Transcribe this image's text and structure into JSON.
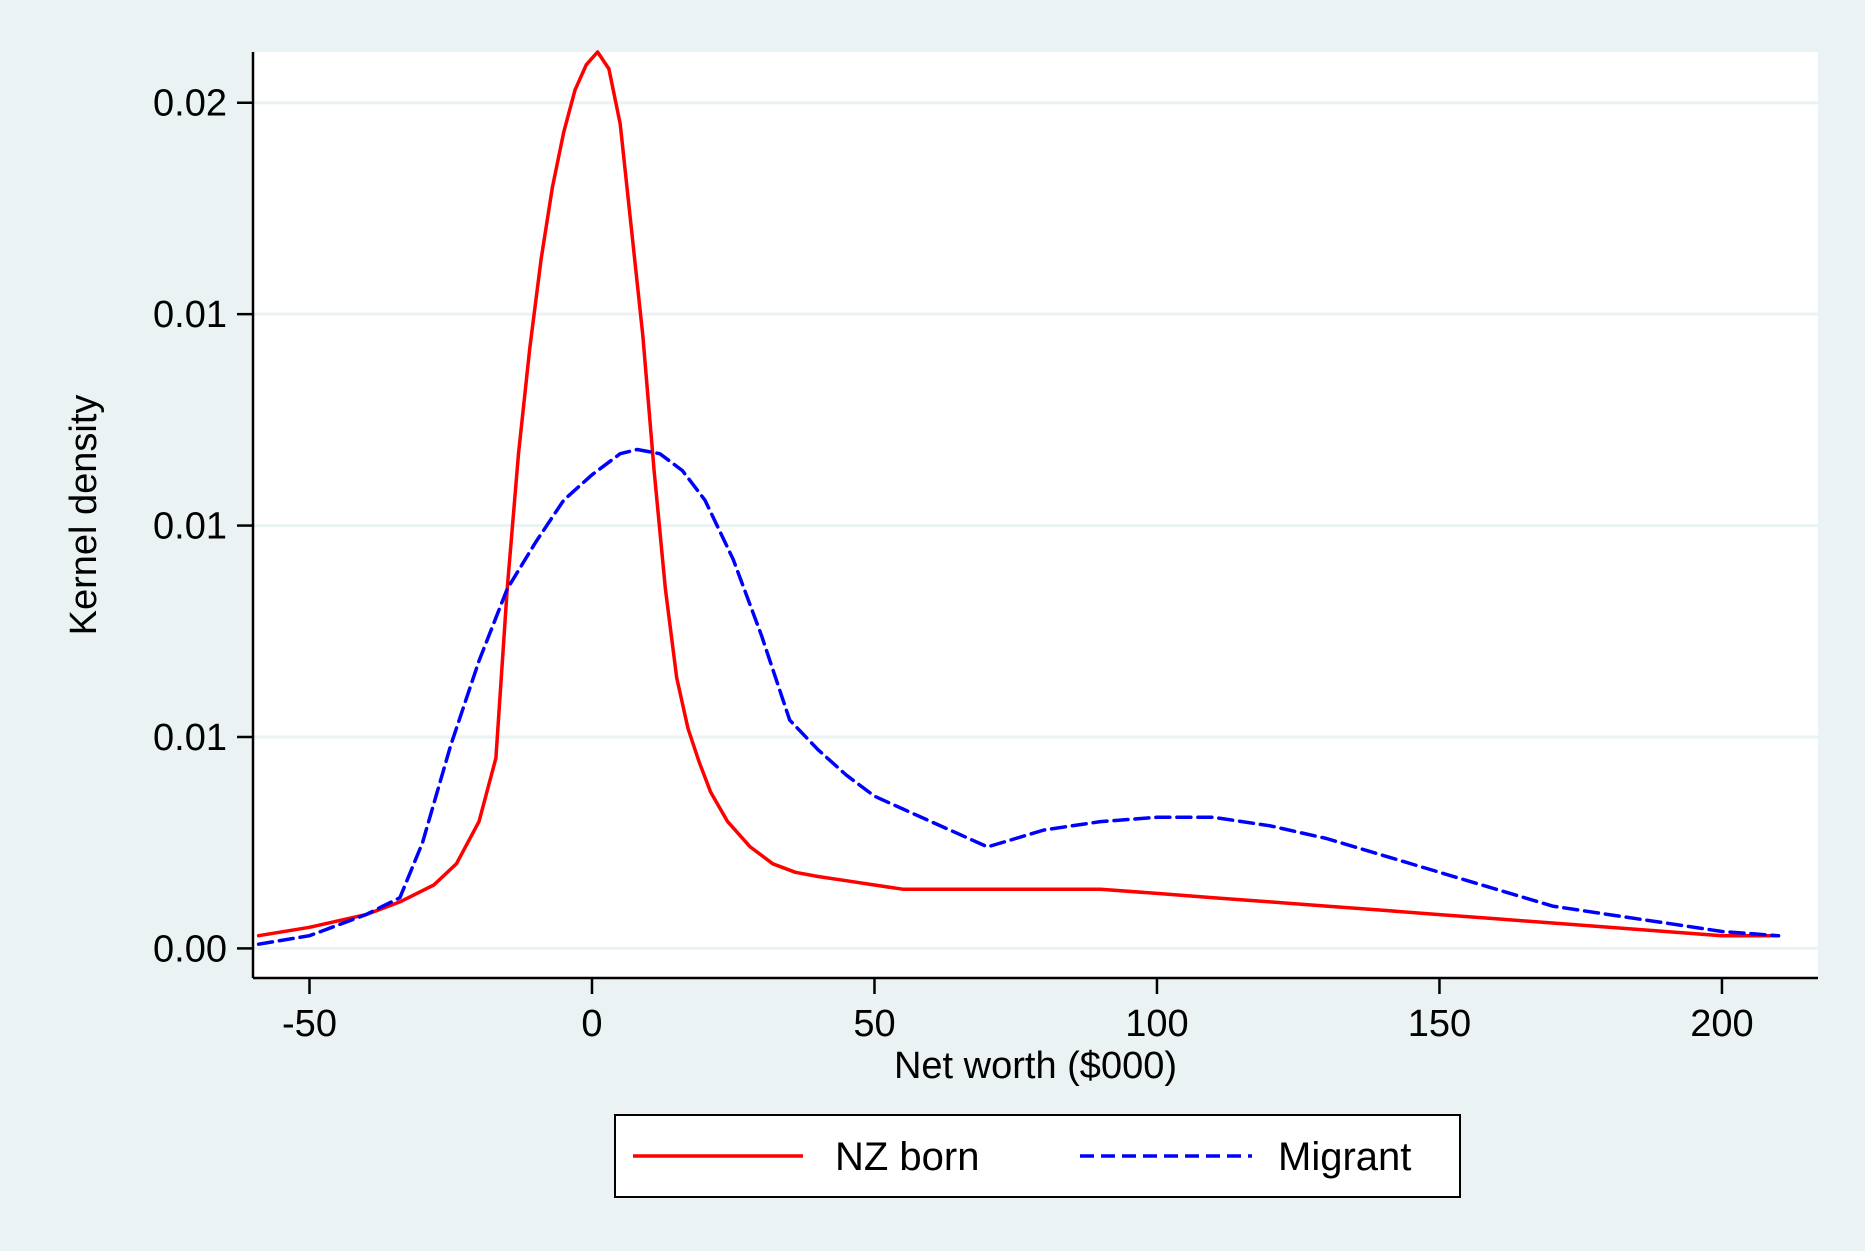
{
  "colors": {
    "outer_background": "#eaf2f3",
    "plot_background": "#ffffff",
    "gridline": "#eaf2f3",
    "axis": "#000000"
  },
  "chart_data": {
    "type": "line",
    "title": "",
    "xlabel": "Net worth ($000)",
    "ylabel": "Kernel density",
    "xlim": [
      -60,
      217
    ],
    "ylim": [
      -0.0007,
      0.0212
    ],
    "grid": true,
    "legend_position": "bottom",
    "x_ticks": [
      {
        "value": -50,
        "label": "-50"
      },
      {
        "value": 0,
        "label": "0"
      },
      {
        "value": 50,
        "label": "50"
      },
      {
        "value": 100,
        "label": "100"
      },
      {
        "value": 150,
        "label": "150"
      },
      {
        "value": 200,
        "label": "200"
      }
    ],
    "y_ticks": [
      {
        "value": 0.0,
        "label": "0.00"
      },
      {
        "value": 0.005,
        "label": "0.01"
      },
      {
        "value": 0.01,
        "label": "0.01"
      },
      {
        "value": 0.015,
        "label": "0.01"
      },
      {
        "value": 0.02,
        "label": "0.02"
      }
    ],
    "series": [
      {
        "name": "NZ born",
        "color": "#ff0000",
        "dash": "solid",
        "x": [
          -59,
          -50,
          -40,
          -34,
          -28,
          -24,
          -20,
          -17,
          -15,
          -13,
          -11,
          -9,
          -7,
          -5,
          -3,
          -1,
          1,
          3,
          5,
          7,
          9,
          11,
          13,
          15,
          17,
          19,
          21,
          24,
          28,
          32,
          36,
          40,
          45,
          50,
          55,
          60,
          65,
          70,
          75,
          80,
          90,
          100,
          110,
          120,
          130,
          140,
          150,
          160,
          170,
          180,
          190,
          200,
          210
        ],
        "y": [
          0.0003,
          0.0005,
          0.0008,
          0.0011,
          0.0015,
          0.002,
          0.003,
          0.0045,
          0.0085,
          0.0117,
          0.0142,
          0.0163,
          0.018,
          0.0193,
          0.0203,
          0.0209,
          0.0212,
          0.0208,
          0.0195,
          0.017,
          0.0145,
          0.0113,
          0.0085,
          0.0064,
          0.0052,
          0.0044,
          0.0037,
          0.003,
          0.0024,
          0.002,
          0.0018,
          0.0017,
          0.0016,
          0.0015,
          0.0014,
          0.0014,
          0.0014,
          0.0014,
          0.0014,
          0.0014,
          0.0014,
          0.0013,
          0.0012,
          0.0011,
          0.001,
          0.0009,
          0.0008,
          0.0007,
          0.0006,
          0.0005,
          0.0004,
          0.0003,
          0.0003
        ],
        "note_x": [
          -59,
          -50,
          -40,
          -34,
          -28,
          -24,
          -20,
          -17,
          -15,
          -13,
          -11,
          -9,
          -7,
          -5,
          -3,
          -1,
          1,
          3,
          5,
          7,
          9,
          11,
          13,
          15,
          17,
          19,
          21,
          24,
          28,
          32,
          36,
          40,
          45,
          50,
          55,
          60,
          65,
          70,
          75,
          80,
          90,
          100,
          110,
          120,
          130,
          140,
          150,
          160,
          170,
          180,
          190,
          200,
          210
        ]
      },
      {
        "name": "Migrant",
        "color": "#0000ff",
        "dash": "dashed",
        "x": [
          -59,
          -50,
          -40,
          -34,
          -30,
          -25,
          -20,
          -15,
          -10,
          -5,
          0,
          5,
          8,
          12,
          16,
          20,
          25,
          30,
          35,
          40,
          45,
          50,
          55,
          60,
          65,
          70,
          75,
          80,
          85,
          90,
          100,
          110,
          120,
          130,
          140,
          150,
          160,
          170,
          180,
          190,
          200,
          210
        ],
        "y": [
          0.0001,
          0.0003,
          0.0008,
          0.0012,
          0.0025,
          0.0048,
          0.0068,
          0.0085,
          0.0096,
          0.0106,
          0.0112,
          0.0117,
          0.0118,
          0.0117,
          0.0113,
          0.0106,
          0.0092,
          0.0074,
          0.0054,
          0.0047,
          0.0041,
          0.0036,
          0.0033,
          0.003,
          0.0027,
          0.0024,
          0.0026,
          0.0028,
          0.0029,
          0.003,
          0.0031,
          0.0031,
          0.0029,
          0.0026,
          0.0022,
          0.0018,
          0.0014,
          0.001,
          0.0008,
          0.0006,
          0.0004,
          0.0003
        ]
      }
    ]
  }
}
